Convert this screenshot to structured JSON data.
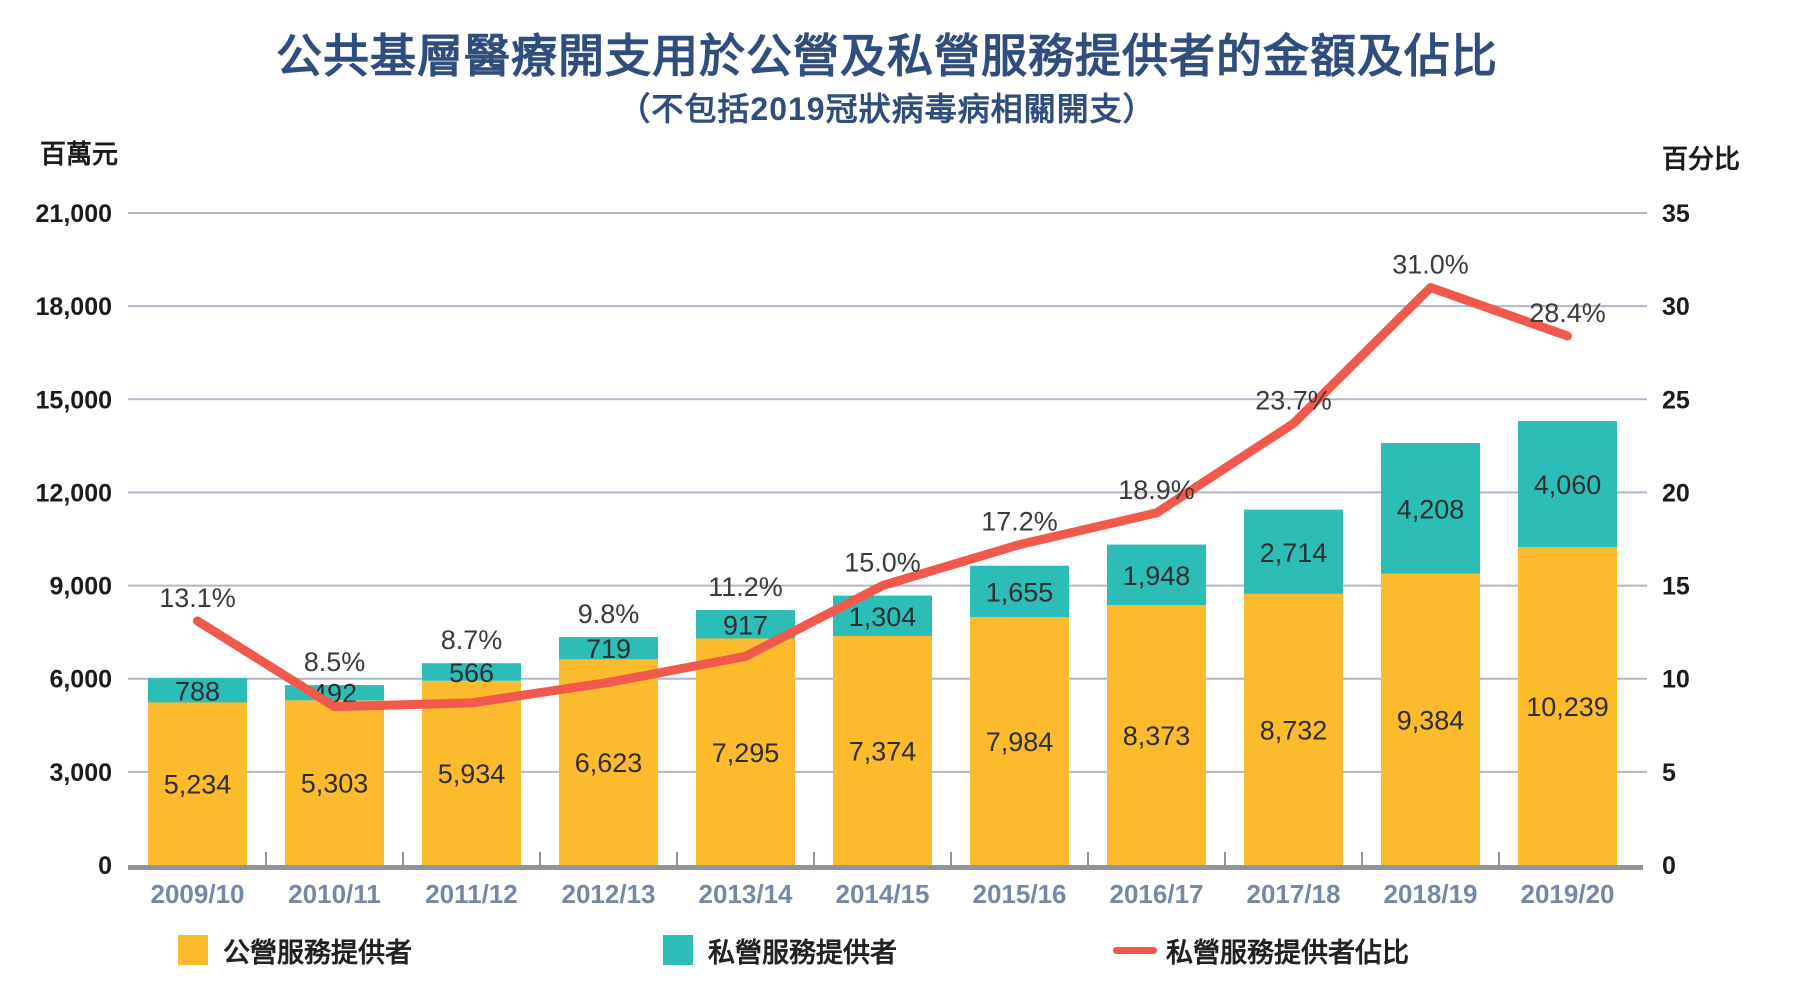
{
  "chart_data": {
    "type": "bar",
    "subtype": "stacked-bar-with-line",
    "title": "公共基層醫療開支用於公營及私營服務提供者的金額及佔比",
    "subtitle": "（不包括2019冠狀病毒病相關開支）",
    "categories": [
      "2009/10",
      "2010/11",
      "2011/12",
      "2012/13",
      "2013/14",
      "2014/15",
      "2015/16",
      "2016/17",
      "2017/18",
      "2018/19",
      "2019/20"
    ],
    "series": [
      {
        "name": "公營服務提供者",
        "chart_type": "bar",
        "stack": "total",
        "axis": "left",
        "color": "#FCBB2D",
        "values": [
          5234,
          5303,
          5934,
          6623,
          7295,
          7374,
          7984,
          8373,
          8732,
          9384,
          10239
        ]
      },
      {
        "name": "私營服務提供者",
        "chart_type": "bar",
        "stack": "total",
        "axis": "left",
        "color": "#2DBDB9",
        "values": [
          788,
          492,
          566,
          719,
          917,
          1304,
          1655,
          1948,
          2714,
          4208,
          4060
        ]
      },
      {
        "name": "私營服務提供者佔比",
        "chart_type": "line",
        "axis": "right",
        "color": "#F0594B",
        "values": [
          13.1,
          8.5,
          8.7,
          9.8,
          11.2,
          15.0,
          17.2,
          18.9,
          23.7,
          31.0,
          28.4
        ]
      }
    ],
    "left_axis": {
      "label": "百萬元",
      "min": 0,
      "max": 21000,
      "step": 3000
    },
    "right_axis": {
      "label": "百分比",
      "min": 0,
      "max": 35,
      "step": 5
    },
    "grid": true,
    "legend_position": "bottom",
    "colors": {
      "title": "#2F4E7D",
      "category_label": "#7389A4",
      "gridline": "#ACB9C8",
      "axis_line": "#8D949B",
      "value_label": "#2E2E2E",
      "pct_label": "#3A3A3A",
      "axis_tick_label": "#1B1B1B"
    }
  }
}
